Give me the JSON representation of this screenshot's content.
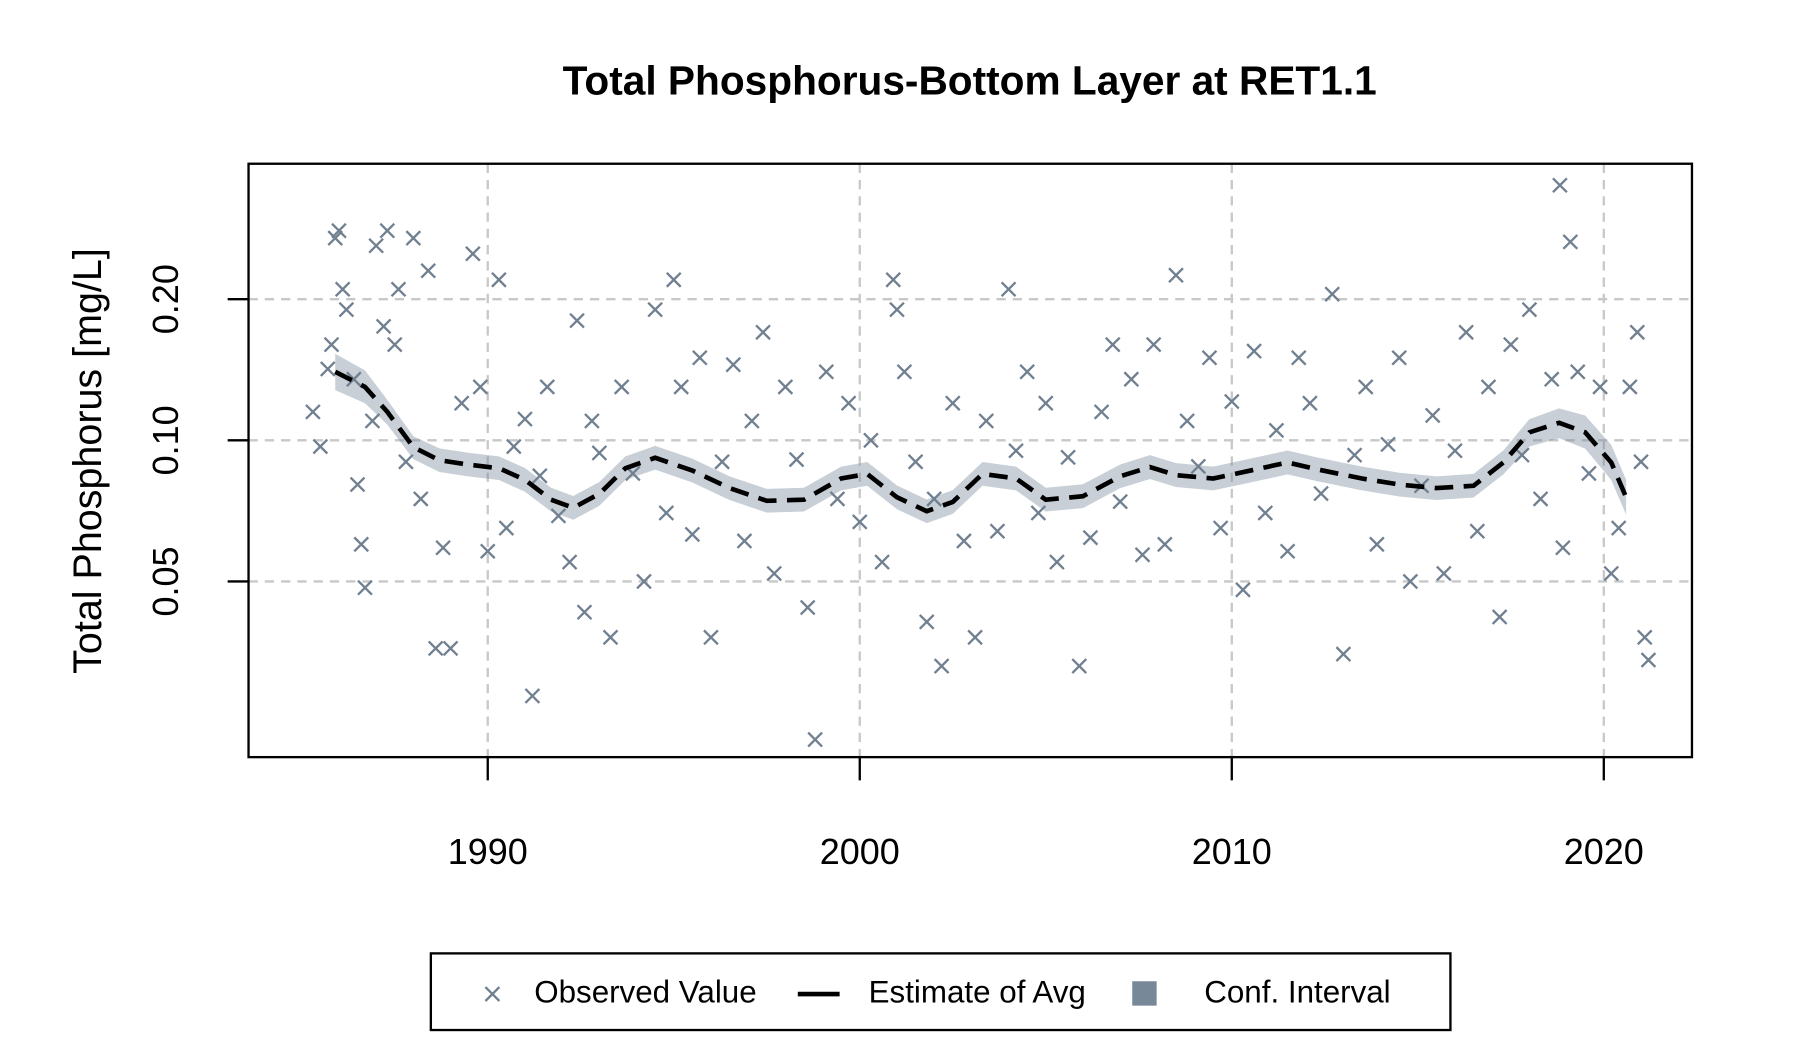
{
  "chart_data": {
    "type": "scatter",
    "title": "Total Phosphorus-Bottom Layer at RET1.1",
    "y_label": "Total Phosphorus [mg/L]",
    "xlim": [
      1983.57,
      2022.37
    ],
    "ylim": [
      0.0211,
      0.389
    ],
    "log_y": true,
    "grid": true,
    "legend": "bottom",
    "xticks": [
      1990,
      2000,
      2010,
      2020
    ],
    "yticks": [
      0.05,
      {
        "value": 0.1,
        "label": "0.10"
      },
      {
        "value": 0.2,
        "label": "0.20"
      }
    ],
    "series": [
      {
        "name": "Observed Value",
        "type": "scatter",
        "color": "#708090",
        "x": [
          1985.3,
          1985.5,
          1985.7,
          1985.8,
          1985.9,
          1986.0,
          1986.1,
          1986.2,
          1986.4,
          1986.5,
          1986.6,
          1986.7,
          1986.9,
          1987.0,
          1987.2,
          1987.3,
          1987.5,
          1987.6,
          1987.8,
          1988.0,
          1988.2,
          1988.4,
          1988.6,
          1988.8,
          1989.0,
          1989.3,
          1989.6,
          1989.8,
          1990.0,
          1990.3,
          1990.5,
          1990.7,
          1991.0,
          1991.2,
          1991.4,
          1991.6,
          1991.9,
          1992.2,
          1992.4,
          1992.6,
          1992.8,
          1993.0,
          1993.3,
          1993.6,
          1993.9,
          1994.2,
          1994.5,
          1994.8,
          1995.0,
          1995.2,
          1995.5,
          1995.7,
          1996.0,
          1996.3,
          1996.6,
          1996.9,
          1997.1,
          1997.4,
          1997.7,
          1998.0,
          1998.3,
          1998.6,
          1998.8,
          1999.1,
          1999.4,
          1999.7,
          2000.0,
          2000.3,
          2000.6,
          2000.9,
          2001.0,
          2001.2,
          2001.5,
          2001.8,
          2002.0,
          2002.2,
          2002.5,
          2002.8,
          2003.1,
          2003.4,
          2003.7,
          2004.0,
          2004.2,
          2004.5,
          2004.8,
          2005.0,
          2005.3,
          2005.6,
          2005.9,
          2006.2,
          2006.5,
          2006.8,
          2007.0,
          2007.3,
          2007.6,
          2007.9,
          2008.2,
          2008.5,
          2008.8,
          2009.1,
          2009.4,
          2009.7,
          2010.0,
          2010.3,
          2010.6,
          2010.9,
          2011.2,
          2011.5,
          2011.8,
          2012.1,
          2012.4,
          2012.7,
          2013.0,
          2013.3,
          2013.6,
          2013.9,
          2014.2,
          2014.5,
          2014.8,
          2015.1,
          2015.4,
          2015.7,
          2016.0,
          2016.3,
          2016.6,
          2016.9,
          2017.2,
          2017.5,
          2017.8,
          2018.0,
          2018.3,
          2018.6,
          2018.82,
          2018.9,
          2019.1,
          2019.3,
          2019.6,
          2019.9,
          2020.2,
          2020.4,
          2020.7,
          2020.9,
          2021.0,
          2021.1,
          2021.2
        ],
        "values": [
          0.115,
          0.097,
          0.142,
          0.16,
          0.27,
          0.28,
          0.21,
          0.19,
          0.135,
          0.0805,
          0.06,
          0.0485,
          0.11,
          0.26,
          0.175,
          0.28,
          0.16,
          0.21,
          0.09,
          0.27,
          0.075,
          0.23,
          0.036,
          0.059,
          0.036,
          0.12,
          0.25,
          0.13,
          0.058,
          0.22,
          0.065,
          0.097,
          0.111,
          0.0285,
          0.084,
          0.13,
          0.069,
          0.055,
          0.18,
          0.043,
          0.11,
          0.094,
          0.038,
          0.13,
          0.085,
          0.05,
          0.19,
          0.07,
          0.22,
          0.13,
          0.063,
          0.15,
          0.038,
          0.09,
          0.145,
          0.061,
          0.11,
          0.17,
          0.052,
          0.13,
          0.091,
          0.044,
          0.023,
          0.14,
          0.075,
          0.12,
          0.067,
          0.1,
          0.055,
          0.22,
          0.19,
          0.14,
          0.09,
          0.041,
          0.075,
          0.033,
          0.12,
          0.061,
          0.038,
          0.11,
          0.064,
          0.21,
          0.095,
          0.14,
          0.07,
          0.12,
          0.055,
          0.092,
          0.033,
          0.062,
          0.115,
          0.16,
          0.074,
          0.135,
          0.057,
          0.16,
          0.06,
          0.225,
          0.11,
          0.088,
          0.15,
          0.065,
          0.121,
          0.048,
          0.155,
          0.07,
          0.105,
          0.058,
          0.15,
          0.12,
          0.077,
          0.205,
          0.035,
          0.093,
          0.13,
          0.06,
          0.098,
          0.15,
          0.05,
          0.08,
          0.113,
          0.052,
          0.095,
          0.17,
          0.064,
          0.13,
          0.042,
          0.16,
          0.093,
          0.19,
          0.075,
          0.135,
          0.35,
          0.059,
          0.265,
          0.14,
          0.085,
          0.13,
          0.052,
          0.065,
          0.13,
          0.17,
          0.09,
          0.038,
          0.034
        ]
      },
      {
        "name": "Estimate of Avg",
        "type": "line",
        "color": "#000000",
        "x": [
          1985.9,
          1986.7,
          1987.3,
          1988.0,
          1988.7,
          1989.5,
          1990.3,
          1991.0,
          1991.7,
          1992.3,
          1993.0,
          1993.7,
          1994.5,
          1995.5,
          1996.5,
          1997.5,
          1998.5,
          1999.5,
          2000.2,
          2001.0,
          2001.8,
          2002.5,
          2003.3,
          2004.2,
          2005.0,
          2006.0,
          2007.0,
          2007.8,
          2008.5,
          2009.5,
          2010.5,
          2011.5,
          2012.3,
          2013.5,
          2014.5,
          2015.5,
          2016.5,
          2017.3,
          2018.0,
          2018.8,
          2019.5,
          2020.2,
          2020.6
        ],
        "values": [
          0.14,
          0.13,
          0.115,
          0.0967,
          0.0907,
          0.0887,
          0.0872,
          0.0824,
          0.0747,
          0.0718,
          0.0769,
          0.0872,
          0.0918,
          0.0862,
          0.0791,
          0.0743,
          0.0747,
          0.0829,
          0.0848,
          0.0756,
          0.0706,
          0.0739,
          0.0848,
          0.0829,
          0.0747,
          0.076,
          0.0838,
          0.0877,
          0.0843,
          0.0829,
          0.0862,
          0.0897,
          0.0867,
          0.0829,
          0.0805,
          0.0791,
          0.08,
          0.0897,
          0.104,
          0.109,
          0.104,
          0.0897,
          0.0756
        ]
      },
      {
        "name": "Conf. Interval",
        "type": "band",
        "color": "#778899",
        "x": [
          1985.9,
          1986.7,
          1987.3,
          1988.0,
          1988.7,
          1989.5,
          1990.3,
          1991.0,
          1991.7,
          1992.3,
          1993.0,
          1993.7,
          1994.5,
          1995.5,
          1996.5,
          1997.5,
          1998.5,
          1999.5,
          2000.2,
          2001.0,
          2001.8,
          2002.5,
          2003.3,
          2004.2,
          2005.0,
          2006.0,
          2007.0,
          2007.8,
          2008.5,
          2009.5,
          2010.5,
          2011.5,
          2012.3,
          2013.5,
          2014.5,
          2015.5,
          2016.5,
          2017.3,
          2018.0,
          2018.8,
          2019.5,
          2020.2,
          2020.6
        ],
        "lower": [
          0.128,
          0.12,
          0.108,
          0.0912,
          0.0856,
          0.0837,
          0.0823,
          0.0777,
          0.0705,
          0.0677,
          0.0725,
          0.0823,
          0.0866,
          0.0813,
          0.0746,
          0.0701,
          0.0705,
          0.0782,
          0.08,
          0.0713,
          0.0666,
          0.0697,
          0.08,
          0.0782,
          0.0705,
          0.0717,
          0.0791,
          0.0827,
          0.0795,
          0.0782,
          0.0813,
          0.0846,
          0.0818,
          0.0782,
          0.0759,
          0.0746,
          0.0755,
          0.0846,
          0.097,
          0.101,
          0.096,
          0.0823,
          0.0694
        ],
        "upper": [
          0.153,
          0.141,
          0.122,
          0.102,
          0.0961,
          0.094,
          0.0924,
          0.0873,
          0.0792,
          0.0761,
          0.0815,
          0.0924,
          0.0973,
          0.0914,
          0.0838,
          0.0788,
          0.0792,
          0.0879,
          0.0899,
          0.0801,
          0.0748,
          0.0783,
          0.0899,
          0.0879,
          0.0792,
          0.0806,
          0.0888,
          0.093,
          0.0894,
          0.0879,
          0.0914,
          0.0951,
          0.0919,
          0.0879,
          0.0853,
          0.0838,
          0.0848,
          0.0951,
          0.111,
          0.117,
          0.113,
          0.0978,
          0.0824
        ]
      }
    ]
  }
}
